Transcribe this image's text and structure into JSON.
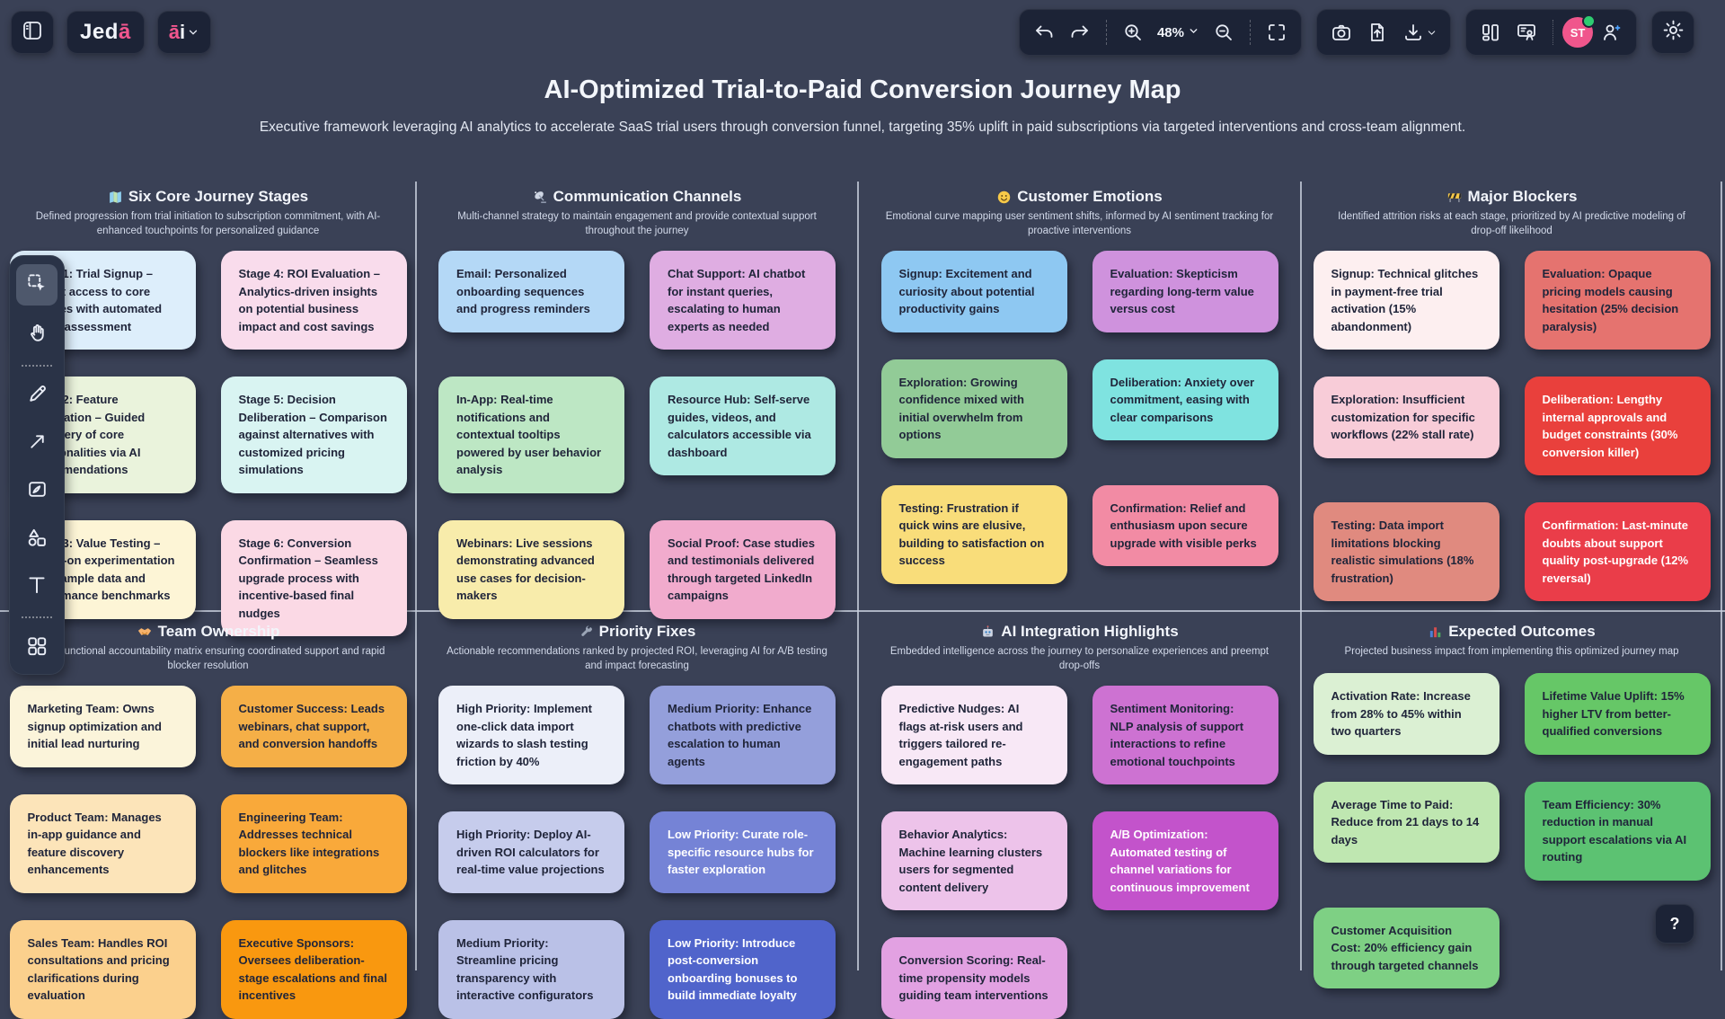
{
  "app": {
    "logo_prefix": "Jed",
    "logo_suffix": "ā",
    "ai_menu_a": "ā",
    "ai_menu_i": "i"
  },
  "toolbar": {
    "zoom_level": "48%",
    "avatar_initials": "ST",
    "top_icons": [
      "sidebar-toggle",
      "undo",
      "redo",
      "zoom-in",
      "zoom-out",
      "fullscreen",
      "camera",
      "file-upload",
      "download",
      "pages-layout",
      "present",
      "invite-person",
      "settings-gear"
    ],
    "left_tools": [
      "select",
      "hand",
      "pencil",
      "arrow",
      "frame",
      "shapes",
      "text",
      "apps-grid"
    ]
  },
  "header": {
    "title": "AI-Optimized Trial-to-Paid Conversion Journey Map",
    "subtitle": "Executive framework leveraging AI analytics to accelerate SaaS trial users through conversion funnel, targeting 35% uplift in paid subscriptions via targeted interventions and cross-team alignment."
  },
  "help": {
    "label": "?"
  },
  "sections": [
    {
      "icon": "map-icon",
      "title": "Six Core Journey Stages",
      "description": "Defined progression from trial initiation to subscription commitment, with AI-enhanced touchpoints for personalized guidance",
      "notes": [
        {
          "text": "Stage 1: Trial Signup – Instant access to core features with automated needs assessment",
          "bg": "#ddeefb",
          "fg": "#20253a"
        },
        {
          "text": "Stage 4: ROI Evaluation – Analytics-driven insights on potential business impact and cost savings",
          "bg": "#f9dcec",
          "fg": "#20253a"
        },
        {
          "text": "Stage 2: Feature Exploration – Guided discovery of core functionalities via AI recommendations",
          "bg": "#eaf3dc",
          "fg": "#20253a"
        },
        {
          "text": "Stage 5: Decision Deliberation – Comparison against alternatives with customized pricing simulations",
          "bg": "#d9f4f2",
          "fg": "#20253a"
        },
        {
          "text": "Stage 3: Value Testing – Hands-on experimentation with sample data and performance benchmarks",
          "bg": "#fdf5d6",
          "fg": "#20253a"
        },
        {
          "text": "Stage 6: Conversion Confirmation – Seamless upgrade process with incentive-based final nudges",
          "bg": "#fbd9e5",
          "fg": "#20253a"
        }
      ]
    },
    {
      "icon": "satellite-icon",
      "title": "Communication Channels",
      "description": "Multi-channel strategy to maintain engagement and provide contextual support throughout the journey",
      "notes": [
        {
          "text": "Email: Personalized onboarding sequences and progress reminders",
          "bg": "#b4d8f6",
          "fg": "#20253a"
        },
        {
          "text": "Chat Support: AI chatbot for instant queries, escalating to human experts as needed",
          "bg": "#dfade2",
          "fg": "#20253a"
        },
        {
          "text": "In-App: Real-time notifications and contextual tooltips powered by user behavior analysis",
          "bg": "#bde7c4",
          "fg": "#20253a"
        },
        {
          "text": "Resource Hub: Self-serve guides, videos, and calculators accessible via dashboard",
          "bg": "#aee9e3",
          "fg": "#20253a"
        },
        {
          "text": "Webinars: Live sessions demonstrating advanced use cases for decision-makers",
          "bg": "#f8ecab",
          "fg": "#20253a"
        },
        {
          "text": "Social Proof: Case studies and testimonials delivered through targeted LinkedIn campaigns",
          "bg": "#f1abcd",
          "fg": "#20253a"
        }
      ]
    },
    {
      "icon": "smiley-icon",
      "title": "Customer Emotions",
      "description": "Emotional curve mapping user sentiment shifts, informed by AI sentiment tracking for proactive interventions",
      "notes": [
        {
          "text": "Signup: Excitement and curiosity about potential productivity gains",
          "bg": "#8ec8f2",
          "fg": "#20253a"
        },
        {
          "text": "Evaluation: Skepticism regarding long-term value versus cost",
          "bg": "#cf92dd",
          "fg": "#20253a"
        },
        {
          "text": "Exploration: Growing confidence mixed with initial overwhelm from options",
          "bg": "#92cb97",
          "fg": "#20253a"
        },
        {
          "text": "Deliberation: Anxiety over commitment, easing with clear comparisons",
          "bg": "#7fe3e0",
          "fg": "#20253a"
        },
        {
          "text": "Testing: Frustration if quick wins are elusive, building to satisfaction on success",
          "bg": "#f9dd7a",
          "fg": "#20253a"
        },
        {
          "text": "Confirmation: Relief and enthusiasm upon secure upgrade with visible perks",
          "bg": "#f28ba4",
          "fg": "#20253a"
        }
      ]
    },
    {
      "icon": "construction-icon",
      "title": "Major Blockers",
      "description": "Identified attrition risks at each stage, prioritized by AI predictive modeling of drop-off likelihood",
      "notes": [
        {
          "text": "Signup: Technical glitches in payment-free trial activation (15% abandonment)",
          "bg": "#fdeff0",
          "fg": "#20253a"
        },
        {
          "text": "Evaluation: Opaque pricing models causing hesitation (25% decision paralysis)",
          "bg": "#e5736f",
          "fg": "#20253a"
        },
        {
          "text": "Exploration: Insufficient customization for specific workflows (22% stall rate)",
          "bg": "#f8ccd8",
          "fg": "#20253a"
        },
        {
          "text": "Deliberation: Lengthy internal approvals and budget constraints (30% conversion killer)",
          "bg": "#e9403c",
          "fg": "#ffffff"
        },
        {
          "text": "Testing: Data import limitations blocking realistic simulations (18% frustration)",
          "bg": "#e08a7f",
          "fg": "#20253a"
        },
        {
          "text": "Confirmation: Last-minute doubts about support quality post-upgrade (12% reversal)",
          "bg": "#ea3d49",
          "fg": "#ffffff"
        }
      ]
    },
    {
      "icon": "handshake-icon",
      "title": "Team Ownership",
      "description": "Cross-functional accountability matrix ensuring coordinated support and rapid blocker resolution",
      "notes": [
        {
          "text": "Marketing Team: Owns signup optimization and initial lead nurturing",
          "bg": "#fbf4da",
          "fg": "#20253a"
        },
        {
          "text": "Customer Success: Leads webinars, chat support, and conversion handoffs",
          "bg": "#f5af47",
          "fg": "#20253a"
        },
        {
          "text": "Product Team: Manages in-app guidance and feature discovery enhancements",
          "bg": "#fce4b9",
          "fg": "#20253a"
        },
        {
          "text": "Engineering Team: Addresses technical blockers like integrations and glitches",
          "bg": "#f9a93a",
          "fg": "#20253a"
        },
        {
          "text": "Sales Team: Handles ROI consultations and pricing clarifications during evaluation",
          "bg": "#fbd08d",
          "fg": "#20253a"
        },
        {
          "text": "Executive Sponsors: Oversees deliberation-stage escalations and final incentives",
          "bg": "#f9980f",
          "fg": "#20253a"
        }
      ]
    },
    {
      "icon": "wrench-icon",
      "title": "Priority Fixes",
      "description": "Actionable recommendations ranked by projected ROI, leveraging AI for A/B testing and impact forecasting",
      "notes": [
        {
          "text": "High Priority: Implement one-click data import wizards to slash testing friction by 40%",
          "bg": "#eceff9",
          "fg": "#20253a"
        },
        {
          "text": "Medium Priority: Enhance chatbots with predictive escalation to human agents",
          "bg": "#949fdb",
          "fg": "#20253a"
        },
        {
          "text": "High Priority: Deploy AI-driven ROI calculators for real-time value projections",
          "bg": "#c6ccec",
          "fg": "#20253a"
        },
        {
          "text": "Low Priority: Curate role-specific resource hubs for faster exploration",
          "bg": "#7583d6",
          "fg": "#ffffff"
        },
        {
          "text": "Medium Priority: Streamline pricing transparency with interactive configurators",
          "bg": "#bac1e7",
          "fg": "#20253a"
        },
        {
          "text": "Low Priority: Introduce post-conversion onboarding bonuses to build immediate loyalty",
          "bg": "#5064cb",
          "fg": "#ffffff"
        }
      ]
    },
    {
      "icon": "robot-icon",
      "title": "AI Integration Highlights",
      "description": "Embedded intelligence across the journey to personalize experiences and preempt drop-offs",
      "notes": [
        {
          "text": "Predictive Nudges: AI flags at-risk users and triggers tailored re-engagement paths",
          "bg": "#f8e8f6",
          "fg": "#20253a"
        },
        {
          "text": "Sentiment Monitoring: NLP analysis of support interactions to refine emotional touchpoints",
          "bg": "#cd72d2",
          "fg": "#20253a"
        },
        {
          "text": "Behavior Analytics: Machine learning clusters users for segmented content delivery",
          "bg": "#edc3ea",
          "fg": "#20253a"
        },
        {
          "text": "A/B Optimization: Automated testing of channel variations for continuous improvement",
          "bg": "#c353cb",
          "fg": "#ffffff"
        },
        {
          "text": "Conversion Scoring: Real-time propensity models guiding team interventions",
          "bg": "#e2a1e2",
          "fg": "#20253a"
        }
      ]
    },
    {
      "icon": "bar-chart-icon",
      "title": "Expected Outcomes",
      "description": "Projected business impact from implementing this optimized journey map",
      "notes": [
        {
          "text": "Activation Rate: Increase from 28% to 45% within two quarters",
          "bg": "#dbf0d3",
          "fg": "#20253a"
        },
        {
          "text": "Lifetime Value Uplift: 15% higher LTV from better-qualified conversions",
          "bg": "#66c767",
          "fg": "#20253a"
        },
        {
          "text": "Average Time to Paid: Reduce from 21 days to 14 days",
          "bg": "#bfe7b1",
          "fg": "#20253a"
        },
        {
          "text": "Team Efficiency: 30% reduction in manual support escalations via AI routing",
          "bg": "#5cc272",
          "fg": "#20253a"
        },
        {
          "text": "Customer Acquisition Cost: 20% efficiency gain through targeted channels",
          "bg": "#7ed084",
          "fg": "#20253a"
        }
      ]
    }
  ]
}
